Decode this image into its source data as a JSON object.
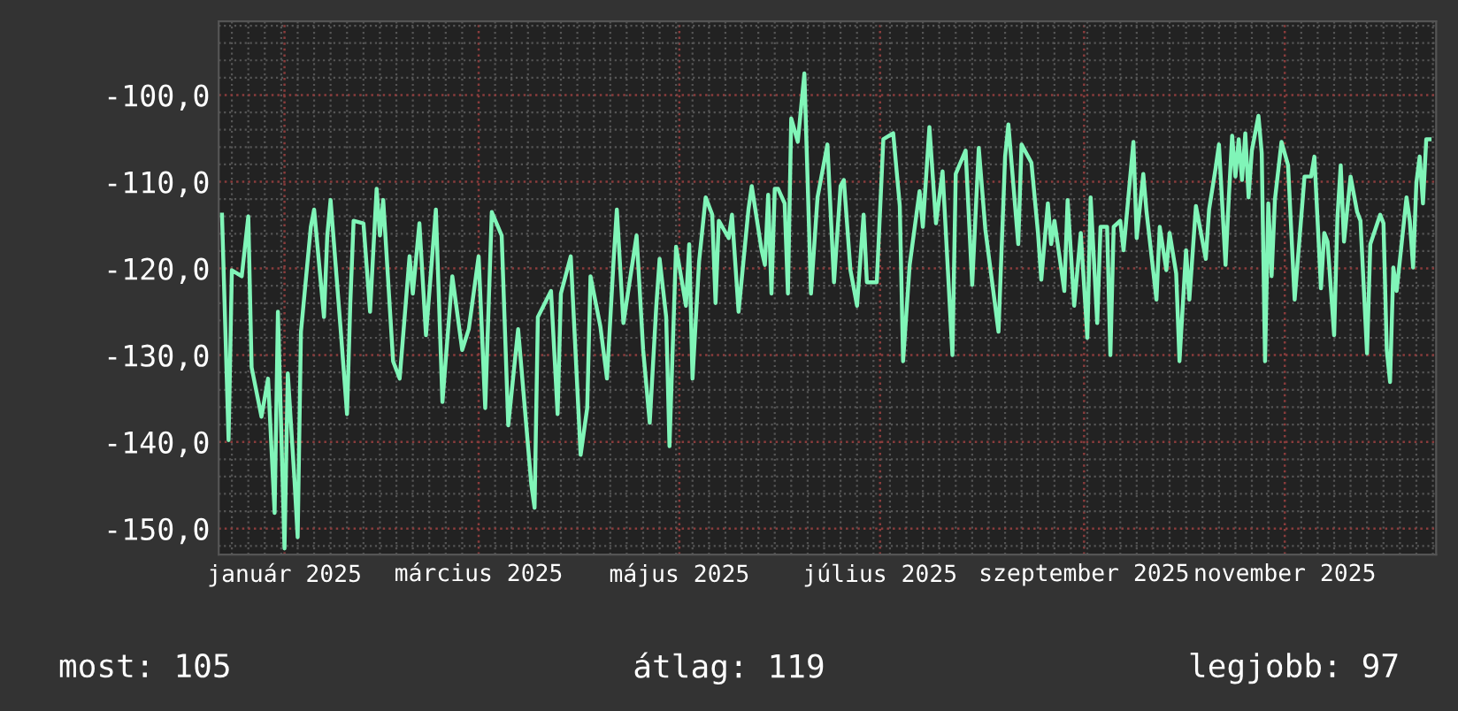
{
  "chart_data": {
    "type": "line",
    "grid": true,
    "legend": false,
    "marker": "none",
    "line_style": "solid",
    "xlim": [
      "2024-12-12",
      "2025-12-17"
    ],
    "xticks": [
      {
        "value": "2025-01-01",
        "label": "január 2025"
      },
      {
        "value": "2025-03-01",
        "label": "március 2025"
      },
      {
        "value": "2025-05-01",
        "label": "május 2025"
      },
      {
        "value": "2025-07-01",
        "label": "július 2025"
      },
      {
        "value": "2025-09-01",
        "label": "szeptember 2025"
      },
      {
        "value": "2025-11-01",
        "label": "november 2025"
      }
    ],
    "ylim": [
      -153,
      -91.5
    ],
    "yticks": [
      {
        "value": -100,
        "label": "-100,0"
      },
      {
        "value": -110,
        "label": "-110,0"
      },
      {
        "value": -120,
        "label": "-120,0"
      },
      {
        "value": -130,
        "label": "-130,0"
      },
      {
        "value": -140,
        "label": "-140,0"
      },
      {
        "value": -150,
        "label": "-150,0"
      }
    ],
    "annotations": [
      "most: 105",
      "átlag: 119",
      "legjobb: 97"
    ],
    "series": [
      {
        "color": "#80f5b8",
        "x": [
          "2024-12-13",
          "2024-12-15",
          "2024-12-16",
          "2024-12-19",
          "2024-12-21",
          "2024-12-22",
          "2024-12-25",
          "2024-12-27",
          "2024-12-29",
          "2024-12-30",
          "2025-01-01",
          "2025-01-02",
          "2025-01-04",
          "2025-01-05",
          "2025-01-06",
          "2025-01-09",
          "2025-01-10",
          "2025-01-13",
          "2025-01-14",
          "2025-01-15",
          "2025-01-18",
          "2025-01-20",
          "2025-01-21",
          "2025-01-22",
          "2025-01-25",
          "2025-01-27",
          "2025-01-29",
          "2025-01-30",
          "2025-01-31",
          "2025-02-03",
          "2025-02-05",
          "2025-02-08",
          "2025-02-09",
          "2025-02-11",
          "2025-02-13",
          "2025-02-16",
          "2025-02-18",
          "2025-02-21",
          "2025-02-24",
          "2025-02-26",
          "2025-03-01",
          "2025-03-03",
          "2025-03-05",
          "2025-03-08",
          "2025-03-10",
          "2025-03-13",
          "2025-03-17",
          "2025-03-18",
          "2025-03-19",
          "2025-03-23",
          "2025-03-25",
          "2025-03-26",
          "2025-03-29",
          "2025-04-01",
          "2025-04-03",
          "2025-04-04",
          "2025-04-07",
          "2025-04-09",
          "2025-04-11",
          "2025-04-12",
          "2025-04-14",
          "2025-04-18",
          "2025-04-20",
          "2025-04-22",
          "2025-04-24",
          "2025-04-25",
          "2025-04-27",
          "2025-04-28",
          "2025-04-30",
          "2025-05-03",
          "2025-05-04",
          "2025-05-05",
          "2025-05-07",
          "2025-05-09",
          "2025-05-11",
          "2025-05-12",
          "2025-05-13",
          "2025-05-16",
          "2025-05-17",
          "2025-05-19",
          "2025-05-22",
          "2025-05-23",
          "2025-05-26",
          "2025-05-27",
          "2025-05-28",
          "2025-05-29",
          "2025-05-30",
          "2025-05-31",
          "2025-06-02",
          "2025-06-03",
          "2025-06-04",
          "2025-06-06",
          "2025-06-08",
          "2025-06-09",
          "2025-06-10",
          "2025-06-12",
          "2025-06-15",
          "2025-06-17",
          "2025-06-19",
          "2025-06-20",
          "2025-06-22",
          "2025-06-24",
          "2025-06-26",
          "2025-06-27",
          "2025-06-30",
          "2025-07-02",
          "2025-07-05",
          "2025-07-07",
          "2025-07-08",
          "2025-07-10",
          "2025-07-13",
          "2025-07-14",
          "2025-07-16",
          "2025-07-18",
          "2025-07-20",
          "2025-07-23",
          "2025-07-24",
          "2025-07-27",
          "2025-07-29",
          "2025-07-31",
          "2025-08-02",
          "2025-08-06",
          "2025-08-08",
          "2025-08-09",
          "2025-08-12",
          "2025-08-13",
          "2025-08-16",
          "2025-08-18",
          "2025-08-19",
          "2025-08-21",
          "2025-08-22",
          "2025-08-23",
          "2025-08-26",
          "2025-08-27",
          "2025-08-29",
          "2025-08-31",
          "2025-09-02",
          "2025-09-03",
          "2025-09-05",
          "2025-09-06",
          "2025-09-08",
          "2025-09-09",
          "2025-09-10",
          "2025-09-12",
          "2025-09-13",
          "2025-09-16",
          "2025-09-17",
          "2025-09-19",
          "2025-09-20",
          "2025-09-23",
          "2025-09-24",
          "2025-09-26",
          "2025-09-27",
          "2025-09-29",
          "2025-09-30",
          "2025-10-02",
          "2025-10-03",
          "2025-10-05",
          "2025-10-08",
          "2025-10-09",
          "2025-10-11",
          "2025-10-12",
          "2025-10-14",
          "2025-10-15",
          "2025-10-16",
          "2025-10-17",
          "2025-10-18",
          "2025-10-19",
          "2025-10-20",
          "2025-10-21",
          "2025-10-22",
          "2025-10-24",
          "2025-10-25",
          "2025-10-26",
          "2025-10-27",
          "2025-10-28",
          "2025-10-29",
          "2025-10-31",
          "2025-11-02",
          "2025-11-03",
          "2025-11-04",
          "2025-11-07",
          "2025-11-09",
          "2025-11-10",
          "2025-11-12",
          "2025-11-13",
          "2025-11-14",
          "2025-11-16",
          "2025-11-17",
          "2025-11-18",
          "2025-11-19",
          "2025-11-21",
          "2025-11-23",
          "2025-11-24",
          "2025-11-26",
          "2025-11-27",
          "2025-11-30",
          "2025-12-01",
          "2025-12-02",
          "2025-12-03",
          "2025-12-04",
          "2025-12-05",
          "2025-12-08",
          "2025-12-09",
          "2025-12-10",
          "2025-12-11",
          "2025-12-12",
          "2025-12-13",
          "2025-12-14",
          "2025-12-15"
        ],
        "values": [
          -113.8,
          -139.8,
          -120.2,
          -120.9,
          -114.0,
          -131.4,
          -137.1,
          -132.7,
          -148.2,
          -125.0,
          -152.3,
          -132.1,
          -144.2,
          -151.0,
          -127.3,
          -115.2,
          -113.2,
          -125.6,
          -116.2,
          -112.1,
          -126.7,
          -136.8,
          -124.0,
          -114.5,
          -114.8,
          -125.0,
          -110.8,
          -116.2,
          -112.1,
          -130.7,
          -132.7,
          -118.6,
          -122.9,
          -114.8,
          -127.7,
          -113.2,
          -135.4,
          -120.9,
          -129.4,
          -127.0,
          -118.6,
          -136.1,
          -113.5,
          -116.2,
          -138.1,
          -127.0,
          -144.9,
          -147.6,
          -125.6,
          -122.6,
          -136.8,
          -122.9,
          -118.6,
          -141.5,
          -136.1,
          -120.9,
          -126.7,
          -132.7,
          -119.2,
          -113.2,
          -126.3,
          -116.2,
          -129.4,
          -137.8,
          -124.3,
          -118.9,
          -125.6,
          -140.5,
          -117.5,
          -124.3,
          -117.2,
          -132.7,
          -119.2,
          -111.8,
          -113.8,
          -124.0,
          -114.5,
          -116.5,
          -113.8,
          -125.0,
          -113.2,
          -110.5,
          -117.9,
          -119.6,
          -111.5,
          -122.9,
          -110.8,
          -110.8,
          -112.5,
          -122.9,
          -102.7,
          -105.4,
          -97.5,
          -110.1,
          -122.9,
          -111.8,
          -105.7,
          -121.6,
          -110.5,
          -109.8,
          -120.2,
          -124.3,
          -113.8,
          -121.6,
          -121.6,
          -105.1,
          -104.4,
          -112.8,
          -130.7,
          -119.6,
          -111.1,
          -115.2,
          -103.7,
          -114.8,
          -108.8,
          -130.0,
          -109.1,
          -106.4,
          -121.9,
          -106.1,
          -115.5,
          -127.3,
          -107.1,
          -103.4,
          -117.2,
          -105.7,
          -107.8,
          -115.9,
          -121.3,
          -112.5,
          -117.2,
          -114.5,
          -122.6,
          -112.1,
          -124.3,
          -115.9,
          -128.0,
          -111.8,
          -126.3,
          -115.2,
          -115.2,
          -130.0,
          -115.2,
          -114.5,
          -117.9,
          -105.4,
          -116.5,
          -109.1,
          -113.5,
          -123.6,
          -115.2,
          -120.2,
          -115.9,
          -120.6,
          -130.7,
          -117.9,
          -123.6,
          -112.8,
          -118.9,
          -113.2,
          -108.4,
          -105.7,
          -119.6,
          -111.8,
          -104.7,
          -109.4,
          -105.1,
          -109.8,
          -104.4,
          -111.8,
          -106.4,
          -102.4,
          -106.7,
          -130.7,
          -112.5,
          -120.9,
          -112.1,
          -105.4,
          -108.1,
          -115.9,
          -123.6,
          -109.4,
          -109.4,
          -107.1,
          -122.3,
          -115.9,
          -116.9,
          -127.7,
          -114.2,
          -108.1,
          -116.9,
          -109.4,
          -113.5,
          -114.5,
          -129.8,
          -117.2,
          -113.8,
          -114.8,
          -129.4,
          -133.1,
          -119.9,
          -122.6,
          -111.8,
          -114.5,
          -119.9,
          -110.1,
          -107.1,
          -112.5,
          -105.1,
          -105.1
        ]
      }
    ]
  }
}
